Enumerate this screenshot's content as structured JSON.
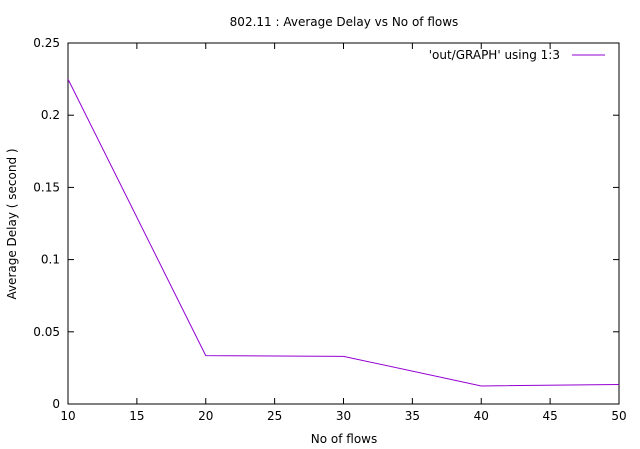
{
  "chart_data": {
    "type": "line",
    "title": "802.11 : Average Delay vs No of flows",
    "xlabel": "No of flows",
    "ylabel": "Average Delay ( second )",
    "xlim": [
      10,
      50
    ],
    "ylim": [
      0,
      0.25
    ],
    "x_ticks": [
      10,
      15,
      20,
      25,
      30,
      35,
      40,
      45,
      50
    ],
    "y_ticks": [
      0,
      0.05,
      0.1,
      0.15,
      0.2,
      0.25
    ],
    "x_tick_labels": [
      "10",
      "15",
      "20",
      "25",
      "30",
      "35",
      "40",
      "45",
      "50"
    ],
    "y_tick_labels": [
      "0",
      "0.05",
      "0.1",
      "0.15",
      "0.2",
      "0.25"
    ],
    "grid": false,
    "legend_position": "top-right",
    "series": [
      {
        "name": "'out/GRAPH' using 1:3",
        "color": "#9400d3",
        "x": [
          10,
          20,
          30,
          40,
          50
        ],
        "y": [
          0.225,
          0.0335,
          0.033,
          0.0125,
          0.0135
        ]
      }
    ]
  }
}
